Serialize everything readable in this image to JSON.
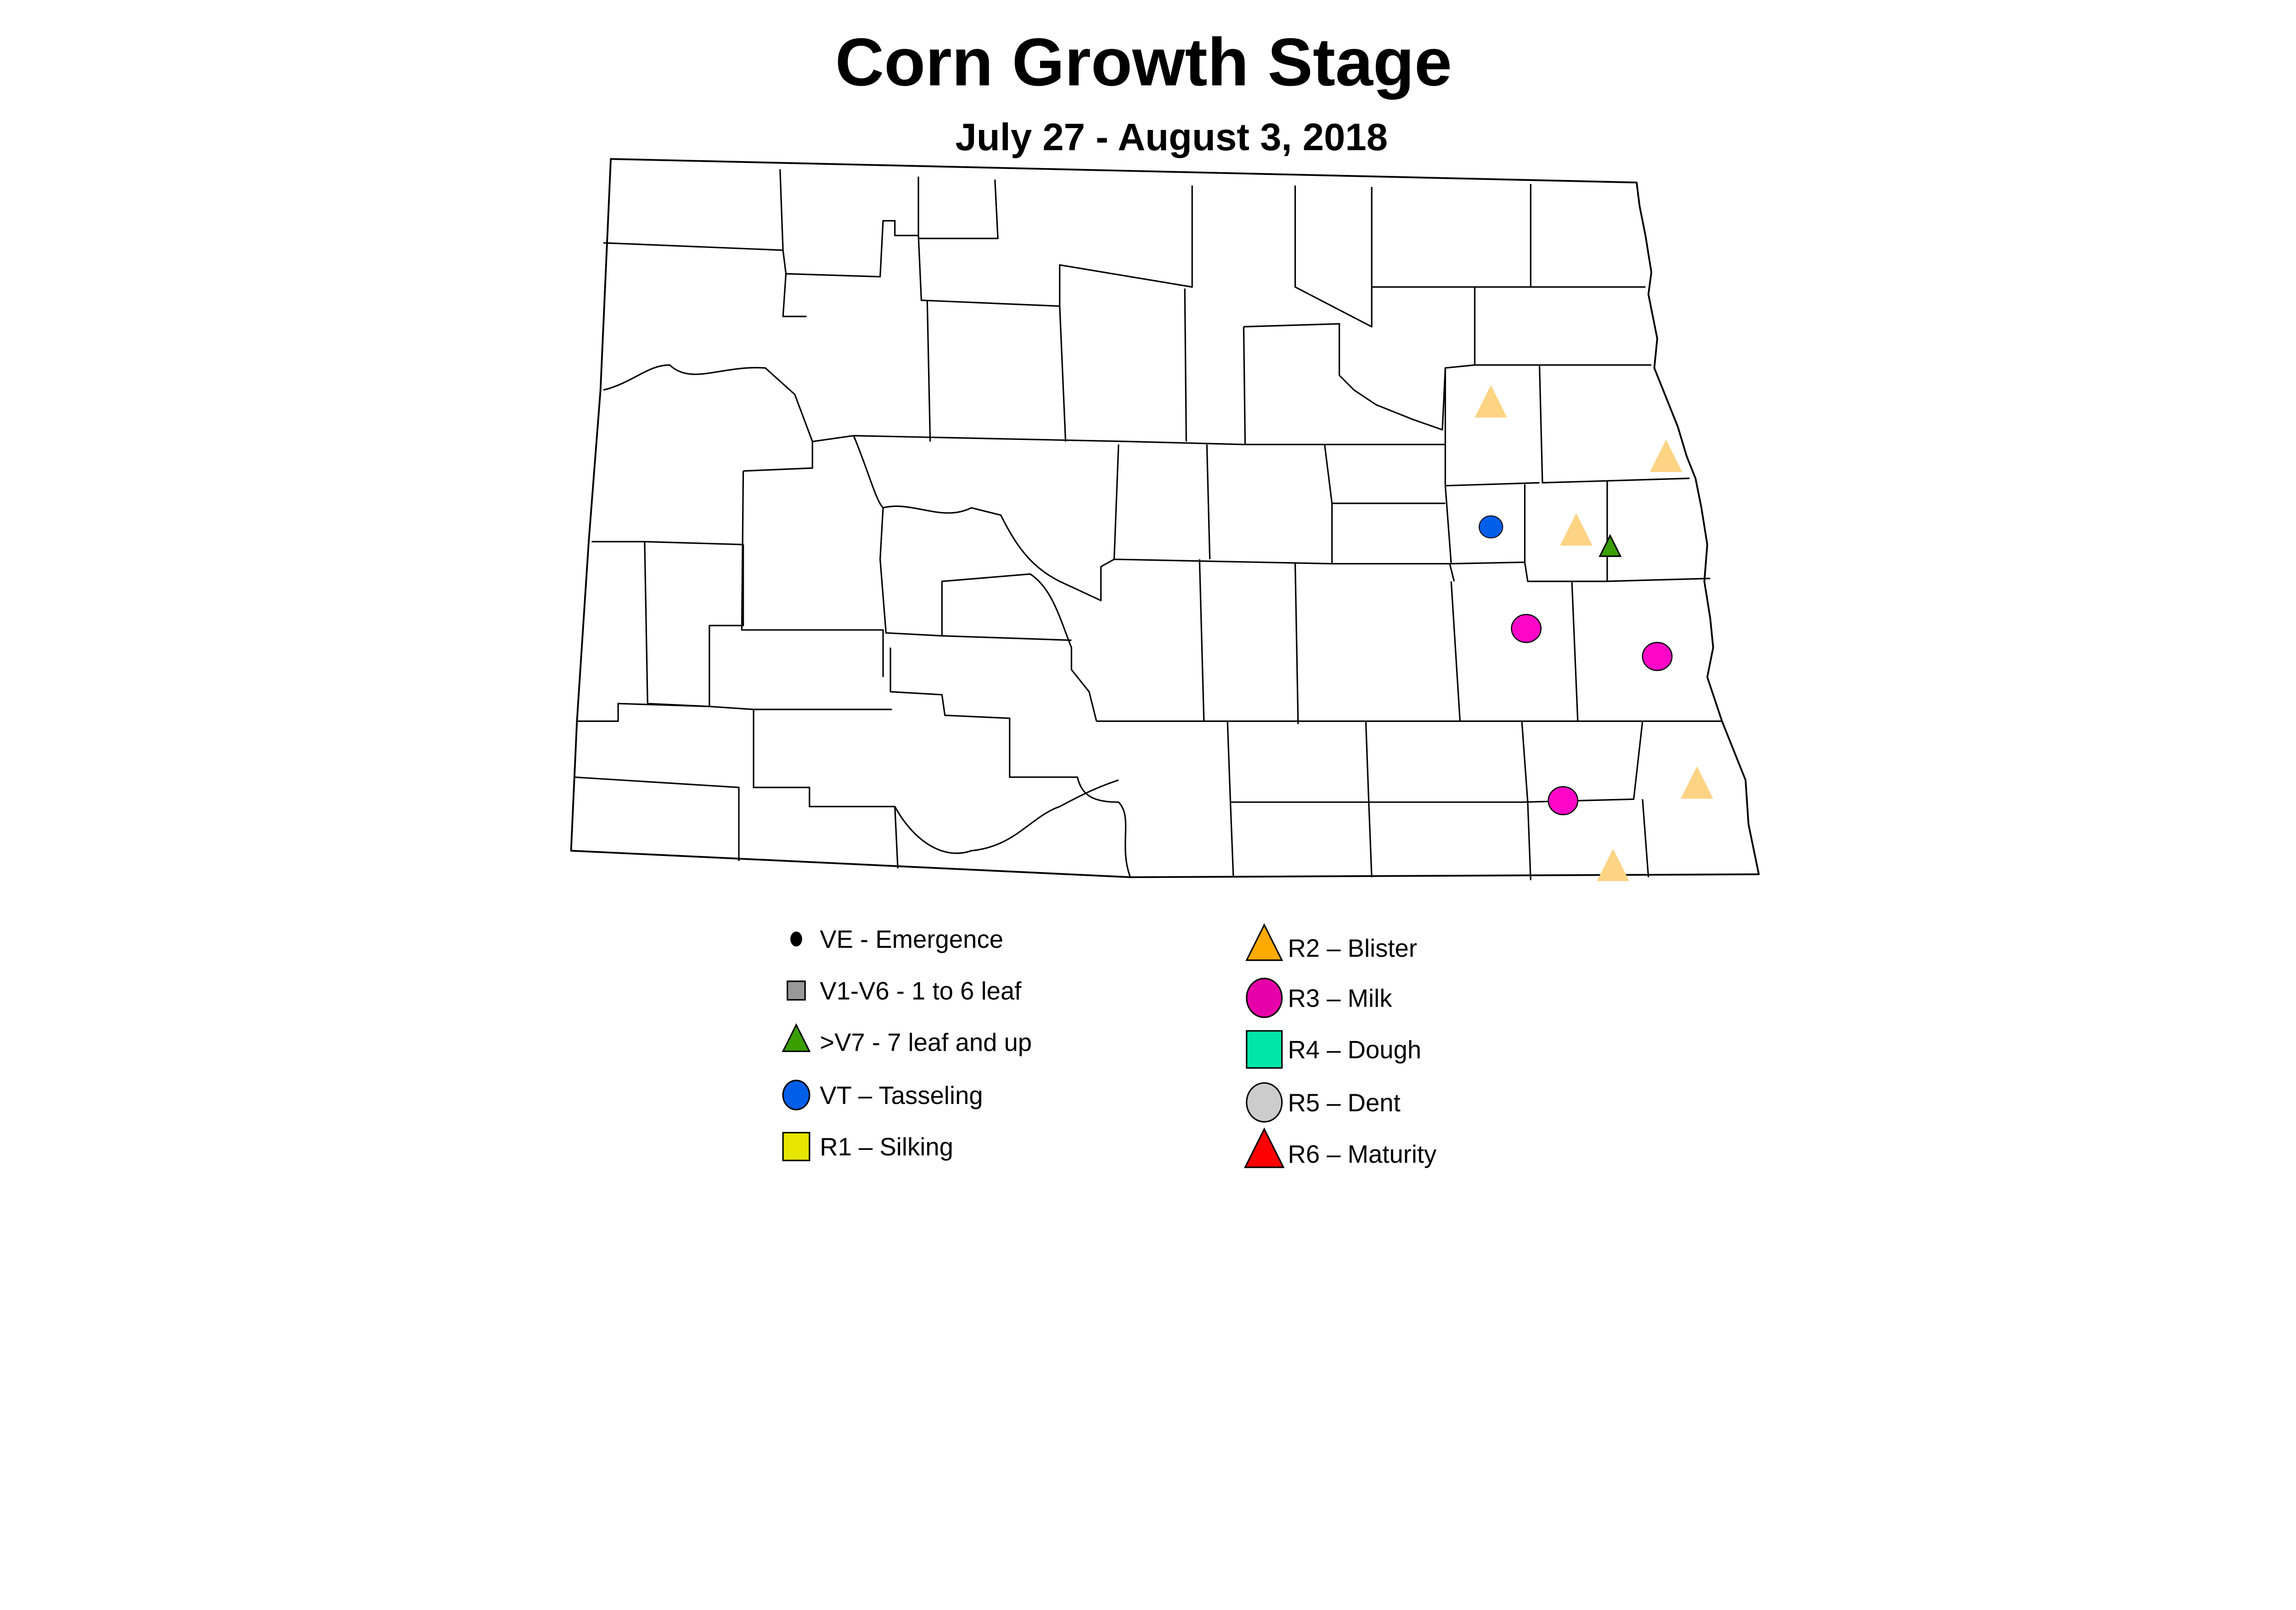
{
  "title": "Corn Growth Stage",
  "subtitle": "July 27 - August 3, 2018",
  "legend": {
    "left": [
      {
        "code": "VE",
        "label": "VE - Emergence",
        "shape": "dot",
        "color": "#000000"
      },
      {
        "code": "V1-V6",
        "label": "V1-V6 - 1 to 6  leaf",
        "shape": "square",
        "color": "#999999"
      },
      {
        "code": ">V7",
        "label": ">V7 - 7 leaf and up",
        "shape": "triangle",
        "color": "#3A9E00"
      },
      {
        "code": "VT",
        "label": "VT – Tasseling",
        "shape": "circle",
        "color": "#005EE8"
      },
      {
        "code": "R1",
        "label": "R1 – Silking",
        "shape": "square",
        "color": "#E6E600"
      }
    ],
    "right": [
      {
        "code": "R2",
        "label": "R2 – Blister",
        "shape": "triangle",
        "color": "#FFAA00"
      },
      {
        "code": "R3",
        "label": "R3 – Milk",
        "shape": "circle",
        "color": "#E600A9"
      },
      {
        "code": "R4",
        "label": "R4 – Dough",
        "shape": "square",
        "color": "#00E6A9"
      },
      {
        "code": "R5",
        "label": "R5 – Dent",
        "shape": "circle",
        "color": "#CCCCCC"
      },
      {
        "code": "R6",
        "label": "R6 – Maturity",
        "shape": "triangle",
        "color": "#FF0000"
      }
    ]
  },
  "map_marker_colors": {
    "R2": "#FDD384",
    ">V7": "#3A9E00",
    "VT": "#005EE8",
    "R3": "#FF05C8"
  },
  "observations": [
    "R2",
    "R2",
    "R2",
    "R2",
    "R2",
    ">V7",
    "VT",
    "R3",
    "R3",
    "R3"
  ]
}
